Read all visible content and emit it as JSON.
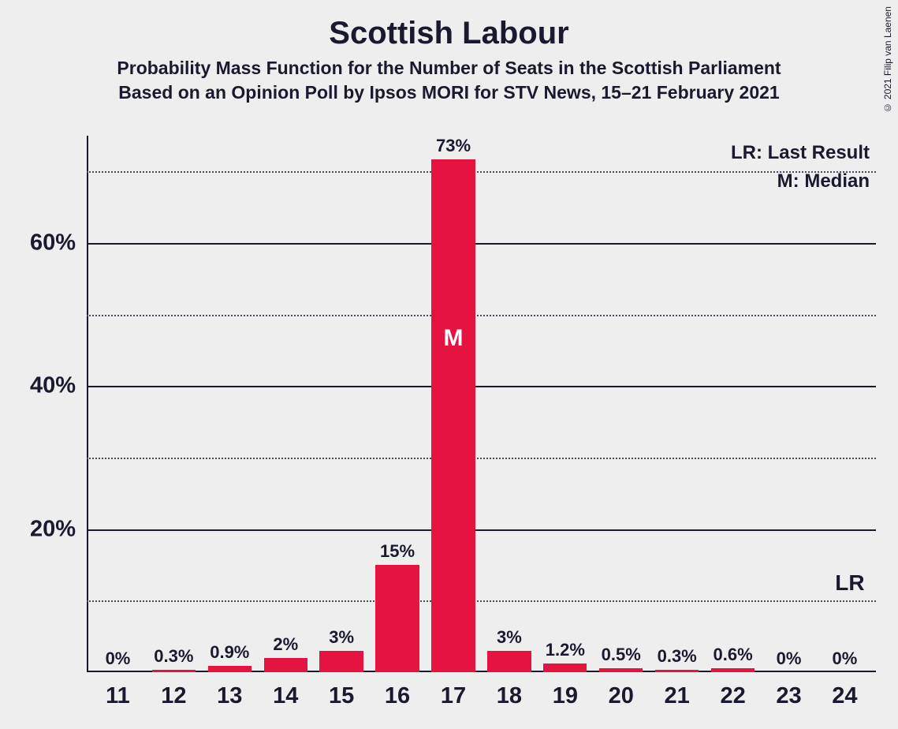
{
  "title": "Scottish Labour",
  "subtitle1": "Probability Mass Function for the Number of Seats in the Scottish Parliament",
  "subtitle2": "Based on an Opinion Poll by Ipsos MORI for STV News, 15–21 February 2021",
  "copyright": "© 2021 Filip van Laenen",
  "legend": {
    "lr": "LR: Last Result",
    "m": "M: Median"
  },
  "lr_marker": "LR",
  "chart": {
    "type": "bar",
    "bar_color": "#e4133f",
    "background_color": "#eeeeee",
    "text_color": "#1a1a2e",
    "grid_major_color": "#1a1a2e",
    "grid_minor_color": "#4a4a5e",
    "bar_width_ratio": 0.78,
    "y_max": 75,
    "y_major_ticks": [
      20,
      40,
      60
    ],
    "y_minor_ticks": [
      10,
      30,
      50,
      70
    ],
    "title_fontsize": 40,
    "subtitle_fontsize": 23,
    "axis_label_fontsize": 29,
    "value_label_fontsize": 22,
    "categories": [
      "11",
      "12",
      "13",
      "14",
      "15",
      "16",
      "17",
      "18",
      "19",
      "20",
      "21",
      "22",
      "23",
      "24"
    ],
    "values": [
      0,
      0.3,
      0.9,
      2,
      3,
      15,
      73,
      3,
      1.2,
      0.5,
      0.3,
      0.6,
      0,
      0
    ],
    "value_labels": [
      "0%",
      "0.3%",
      "0.9%",
      "2%",
      "3%",
      "15%",
      "73%",
      "3%",
      "1.2%",
      "0.5%",
      "0.3%",
      "0.6%",
      "0%",
      "0%"
    ],
    "median_index": 6,
    "median_marker_text": "M",
    "lr_index": 13
  }
}
